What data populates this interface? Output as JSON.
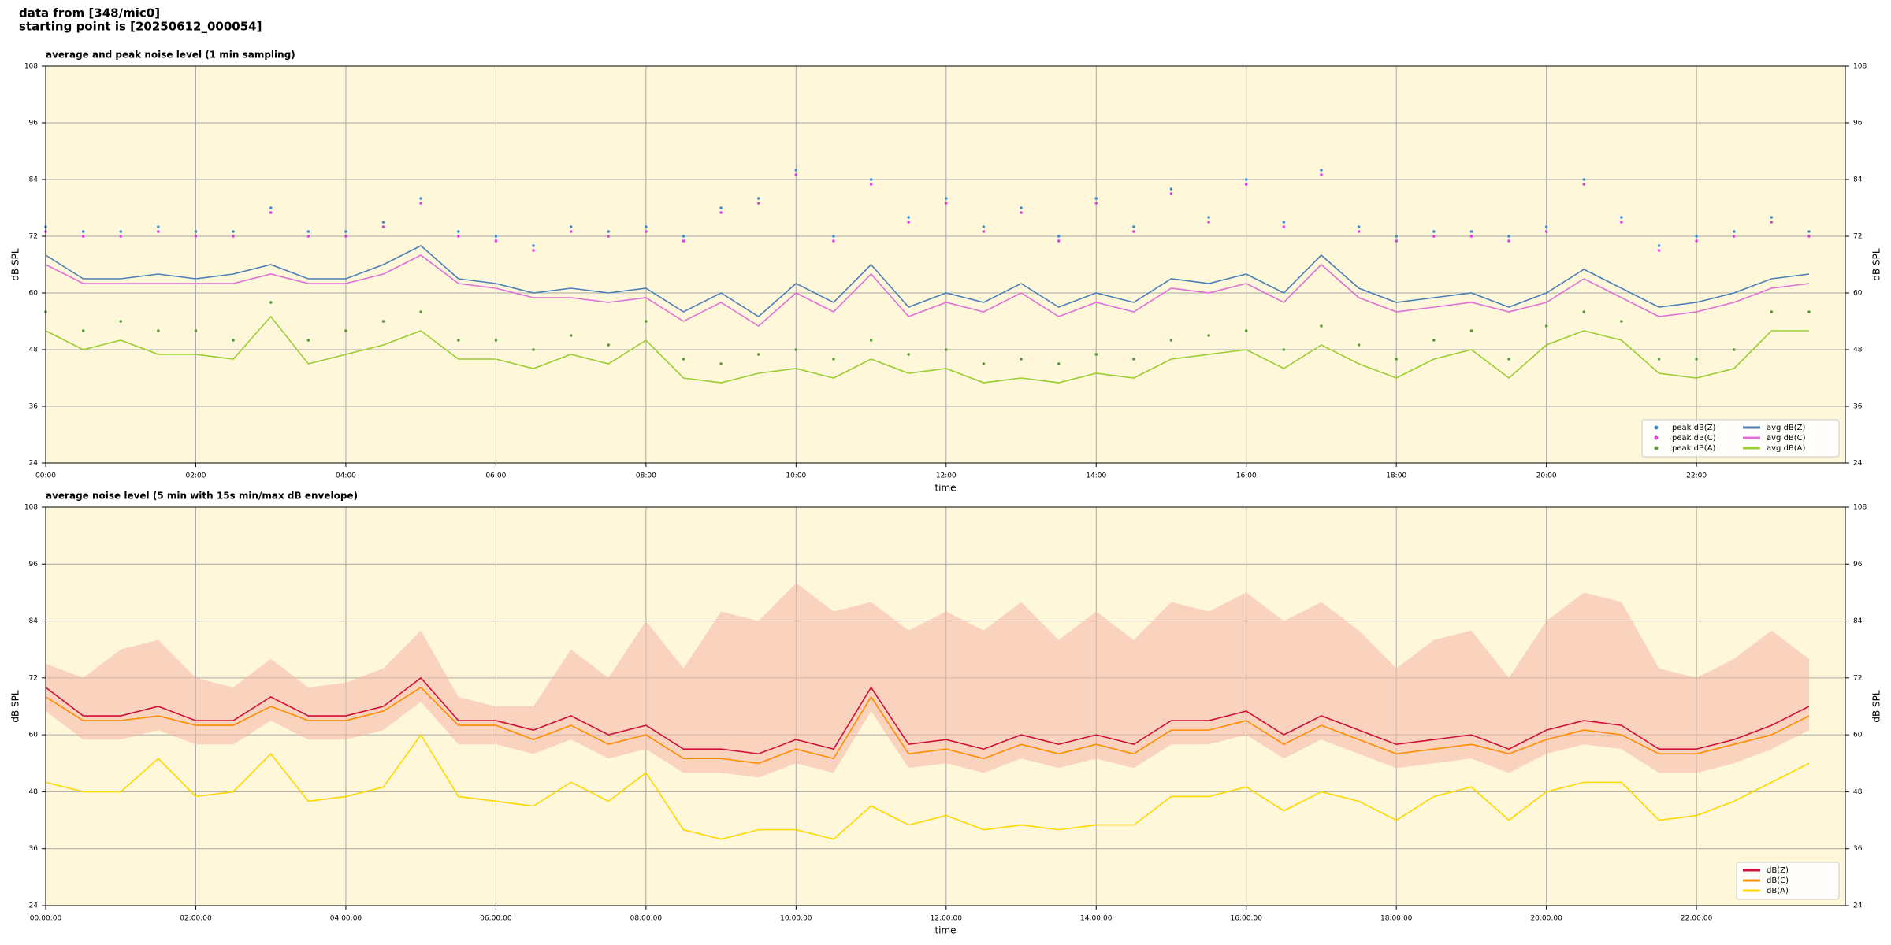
{
  "header": {
    "source": "data from [348/mic0]",
    "start": "starting point is [20250612_000054]"
  },
  "chart_data": [
    {
      "type": "line",
      "title": "average and peak noise level (1 min sampling)",
      "xlabel": "time",
      "ylabel": "dB SPL",
      "y2label": "dB SPL",
      "x": [
        "00:00",
        "00:30",
        "01:00",
        "01:30",
        "02:00",
        "02:30",
        "03:00",
        "03:30",
        "04:00",
        "04:30",
        "05:00",
        "05:30",
        "06:00",
        "06:30",
        "07:00",
        "07:30",
        "08:00",
        "08:30",
        "09:00",
        "09:30",
        "10:00",
        "10:30",
        "11:00",
        "11:30",
        "12:00",
        "12:30",
        "13:00",
        "13:30",
        "14:00",
        "14:30",
        "15:00",
        "15:30",
        "16:00",
        "16:30",
        "17:00",
        "17:30",
        "18:00",
        "18:30",
        "19:00",
        "19:30",
        "20:00",
        "20:30",
        "21:00",
        "21:30",
        "22:00",
        "22:30",
        "23:00",
        "23:30"
      ],
      "xlim": [
        "00:00",
        "23:59"
      ],
      "xticks": [
        "00:00",
        "02:00",
        "04:00",
        "06:00",
        "08:00",
        "10:00",
        "12:00",
        "14:00",
        "16:00",
        "18:00",
        "20:00",
        "22:00"
      ],
      "ylim": [
        24,
        108
      ],
      "yticks": [
        24,
        36,
        48,
        60,
        72,
        84,
        96,
        108
      ],
      "grid": true,
      "legend": "lower right",
      "background": "#fff7d9",
      "series": [
        {
          "name": "peak dB(Z)",
          "kind": "scatter",
          "color": "#3f8fd0",
          "values": [
            74,
            73,
            73,
            74,
            73,
            73,
            78,
            73,
            73,
            75,
            80,
            73,
            72,
            70,
            74,
            73,
            74,
            72,
            78,
            80,
            86,
            72,
            84,
            76,
            80,
            74,
            78,
            72,
            80,
            74,
            82,
            76,
            84,
            75,
            86,
            74,
            72,
            73,
            73,
            72,
            74,
            84,
            76,
            70,
            72,
            73,
            76,
            73
          ]
        },
        {
          "name": "peak dB(C)",
          "kind": "scatter",
          "color": "#e040e0",
          "values": [
            73,
            72,
            72,
            73,
            72,
            72,
            77,
            72,
            72,
            74,
            79,
            72,
            71,
            69,
            73,
            72,
            73,
            71,
            77,
            79,
            85,
            71,
            83,
            75,
            79,
            73,
            77,
            71,
            79,
            73,
            81,
            75,
            83,
            74,
            85,
            73,
            71,
            72,
            72,
            71,
            73,
            83,
            75,
            69,
            71,
            72,
            75,
            72
          ]
        },
        {
          "name": "peak dB(A)",
          "kind": "scatter",
          "color": "#5a9a3a",
          "values": [
            56,
            52,
            54,
            52,
            52,
            50,
            58,
            50,
            52,
            54,
            56,
            50,
            50,
            48,
            51,
            49,
            54,
            46,
            45,
            47,
            48,
            46,
            50,
            47,
            48,
            45,
            46,
            45,
            47,
            46,
            50,
            51,
            52,
            48,
            53,
            49,
            46,
            50,
            52,
            46,
            53,
            56,
            54,
            46,
            46,
            48,
            56,
            56
          ]
        },
        {
          "name": "avg dB(Z)",
          "kind": "line",
          "color": "#4a7fb8",
          "values": [
            68,
            63,
            63,
            64,
            63,
            64,
            66,
            63,
            63,
            66,
            70,
            63,
            62,
            60,
            61,
            60,
            61,
            56,
            60,
            55,
            62,
            58,
            66,
            57,
            60,
            58,
            62,
            57,
            60,
            58,
            63,
            62,
            64,
            60,
            68,
            61,
            58,
            59,
            60,
            57,
            60,
            65,
            61,
            57,
            58,
            60,
            63,
            64
          ]
        },
        {
          "name": "avg dB(C)",
          "kind": "line",
          "color": "#e070d8",
          "values": [
            66,
            62,
            62,
            62,
            62,
            62,
            64,
            62,
            62,
            64,
            68,
            62,
            61,
            59,
            59,
            58,
            59,
            54,
            58,
            53,
            60,
            56,
            64,
            55,
            58,
            56,
            60,
            55,
            58,
            56,
            61,
            60,
            62,
            58,
            66,
            59,
            56,
            57,
            58,
            56,
            58,
            63,
            59,
            55,
            56,
            58,
            61,
            62
          ]
        },
        {
          "name": "avg dB(A)",
          "kind": "line",
          "color": "#9acd32",
          "values": [
            52,
            48,
            50,
            47,
            47,
            46,
            55,
            45,
            47,
            49,
            52,
            46,
            46,
            44,
            47,
            45,
            50,
            42,
            41,
            43,
            44,
            42,
            46,
            43,
            44,
            41,
            42,
            41,
            43,
            42,
            46,
            47,
            48,
            44,
            49,
            45,
            42,
            46,
            48,
            42,
            49,
            52,
            50,
            43,
            42,
            44,
            52,
            52
          ]
        }
      ]
    },
    {
      "type": "line",
      "title": "average noise level (5 min with 15s min/max dB envelope)",
      "xlabel": "time",
      "ylabel": "dB SPL",
      "y2label": "dB SPL",
      "x": [
        "00:00:00",
        "00:30:00",
        "01:00:00",
        "01:30:00",
        "02:00:00",
        "02:30:00",
        "03:00:00",
        "03:30:00",
        "04:00:00",
        "04:30:00",
        "05:00:00",
        "05:30:00",
        "06:00:00",
        "06:30:00",
        "07:00:00",
        "07:30:00",
        "08:00:00",
        "08:30:00",
        "09:00:00",
        "09:30:00",
        "10:00:00",
        "10:30:00",
        "11:00:00",
        "11:30:00",
        "12:00:00",
        "12:30:00",
        "13:00:00",
        "13:30:00",
        "14:00:00",
        "14:30:00",
        "15:00:00",
        "15:30:00",
        "16:00:00",
        "16:30:00",
        "17:00:00",
        "17:30:00",
        "18:00:00",
        "18:30:00",
        "19:00:00",
        "19:30:00",
        "20:00:00",
        "20:30:00",
        "21:00:00",
        "21:30:00",
        "22:00:00",
        "22:30:00",
        "23:00:00",
        "23:30:00"
      ],
      "xlim": [
        "00:00:00",
        "23:59:00"
      ],
      "xticks": [
        "00:00:00",
        "02:00:00",
        "04:00:00",
        "06:00:00",
        "08:00:00",
        "10:00:00",
        "12:00:00",
        "14:00:00",
        "16:00:00",
        "18:00:00",
        "20:00:00",
        "22:00:00"
      ],
      "ylim": [
        24,
        108
      ],
      "yticks": [
        24,
        36,
        48,
        60,
        72,
        84,
        96,
        108
      ],
      "grid": true,
      "legend": "lower right",
      "background": "#fff7d9",
      "envelope": {
        "color": "#f5b7a8",
        "low": [
          65,
          59,
          59,
          61,
          58,
          58,
          63,
          59,
          59,
          61,
          67,
          58,
          58,
          56,
          59,
          55,
          57,
          52,
          52,
          51,
          54,
          52,
          65,
          53,
          54,
          52,
          55,
          53,
          55,
          53,
          58,
          58,
          60,
          55,
          59,
          56,
          53,
          54,
          55,
          52,
          56,
          58,
          57,
          52,
          52,
          54,
          57,
          61
        ],
        "high": [
          75,
          72,
          78,
          80,
          72,
          70,
          76,
          70,
          71,
          74,
          82,
          68,
          66,
          66,
          78,
          72,
          84,
          74,
          86,
          84,
          92,
          86,
          88,
          82,
          86,
          82,
          88,
          80,
          86,
          80,
          88,
          86,
          90,
          84,
          88,
          82,
          74,
          80,
          82,
          72,
          84,
          90,
          88,
          74,
          72,
          76,
          82,
          76
        ]
      },
      "series": [
        {
          "name": "dB(Z)",
          "kind": "line",
          "color": "#d0103a",
          "values": [
            70,
            64,
            64,
            66,
            63,
            63,
            68,
            64,
            64,
            66,
            72,
            63,
            63,
            61,
            64,
            60,
            62,
            57,
            57,
            56,
            59,
            57,
            70,
            58,
            59,
            57,
            60,
            58,
            60,
            58,
            63,
            63,
            65,
            60,
            64,
            61,
            58,
            59,
            60,
            57,
            61,
            63,
            62,
            57,
            57,
            59,
            62,
            66
          ]
        },
        {
          "name": "dB(C)",
          "kind": "line",
          "color": "#ff8c00",
          "values": [
            68,
            63,
            63,
            64,
            62,
            62,
            66,
            63,
            63,
            65,
            70,
            62,
            62,
            59,
            62,
            58,
            60,
            55,
            55,
            54,
            57,
            55,
            68,
            56,
            57,
            55,
            58,
            56,
            58,
            56,
            61,
            61,
            63,
            58,
            62,
            59,
            56,
            57,
            58,
            56,
            59,
            61,
            60,
            56,
            56,
            58,
            60,
            64
          ]
        },
        {
          "name": "dB(A)",
          "kind": "line",
          "color": "#ffd700",
          "values": [
            50,
            48,
            48,
            55,
            47,
            48,
            56,
            46,
            47,
            49,
            60,
            47,
            46,
            45,
            50,
            46,
            52,
            40,
            38,
            40,
            40,
            38,
            45,
            41,
            43,
            40,
            41,
            40,
            41,
            41,
            47,
            47,
            49,
            44,
            48,
            46,
            42,
            47,
            49,
            42,
            48,
            50,
            50,
            42,
            43,
            46,
            50,
            54
          ]
        }
      ]
    }
  ]
}
